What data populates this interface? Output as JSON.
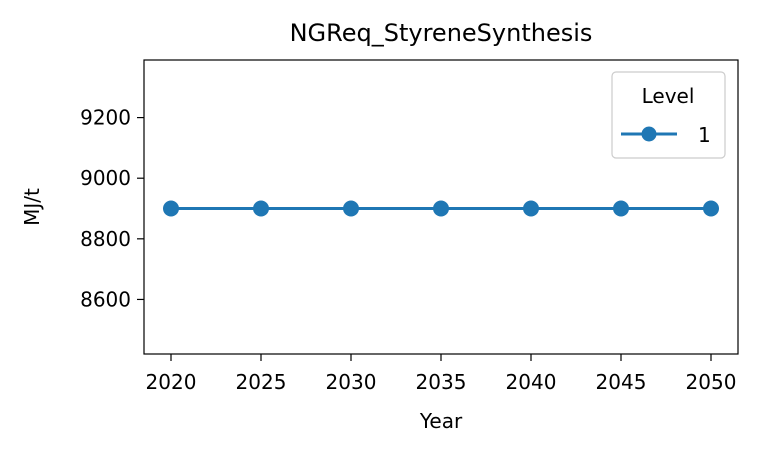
{
  "chart_data": {
    "type": "line",
    "title": "NGReq_StyreneSynthesis",
    "xlabel": "Year",
    "ylabel": "MJ/t",
    "x": [
      2020,
      2025,
      2030,
      2035,
      2040,
      2045,
      2050
    ],
    "xticks": [
      "2020",
      "2025",
      "2030",
      "2035",
      "2040",
      "2045",
      "2050"
    ],
    "yticks": [
      "8600",
      "8800",
      "9000",
      "9200"
    ],
    "ytick_values": [
      8600,
      8800,
      9000,
      9200
    ],
    "xlim": [
      2018.5,
      2051.5
    ],
    "ylim": [
      8420,
      9390
    ],
    "grid": false,
    "legend": {
      "title": "Level",
      "position": "top-right"
    },
    "series": [
      {
        "name": "1",
        "color": "#1f77b4",
        "marker": "circle",
        "values": [
          8900,
          8900,
          8900,
          8900,
          8900,
          8900,
          8900
        ]
      }
    ]
  }
}
